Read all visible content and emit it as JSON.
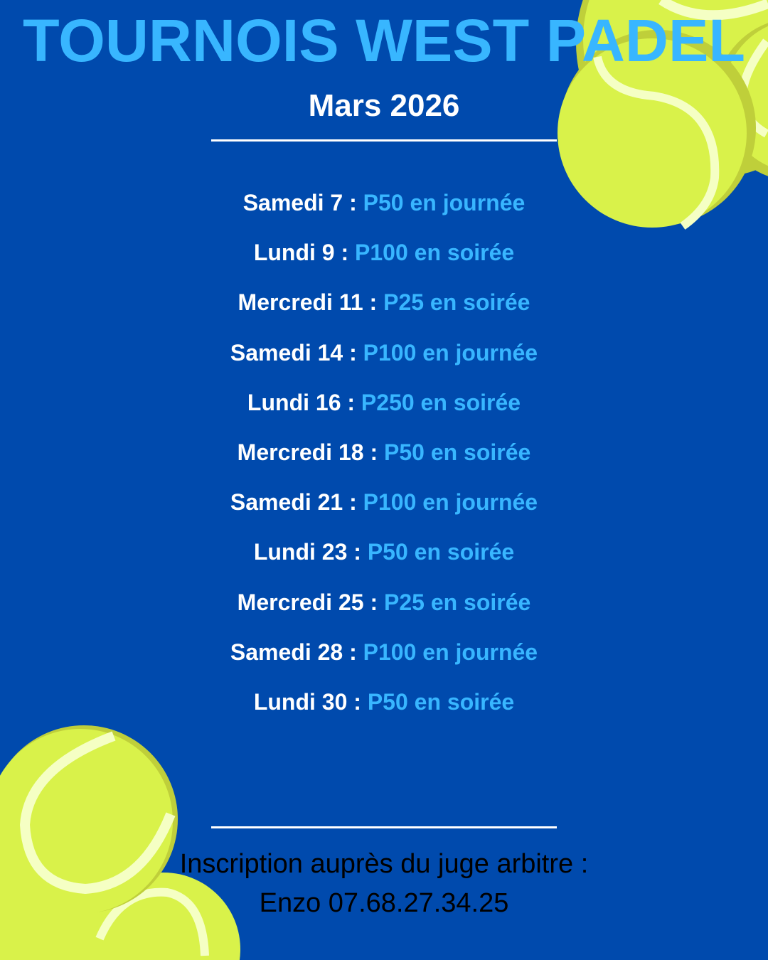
{
  "title": "TOURNOIS WEST PADEL",
  "subtitle": "Mars 2026",
  "schedule": [
    {
      "day": "Samedi 7 : ",
      "event": "P50 en journée"
    },
    {
      "day": "Lundi 9 : ",
      "event": "P100 en soirée"
    },
    {
      "day": "Mercredi 11 : ",
      "event": "P25 en soirée"
    },
    {
      "day": "Samedi 14 : ",
      "event": "P100 en journée"
    },
    {
      "day": "Lundi 16 : ",
      "event": "P250 en soirée"
    },
    {
      "day": "Mercredi 18 : ",
      "event": "P50 en soirée"
    },
    {
      "day": "Samedi 21 : ",
      "event": "P100 en journée"
    },
    {
      "day": "Lundi 23 : ",
      "event": "P50 en soirée"
    },
    {
      "day": "Mercredi 25 : ",
      "event": "P25 en soirée"
    },
    {
      "day": "Samedi 28 : ",
      "event": "P100 en journée"
    },
    {
      "day": "Lundi 30 : ",
      "event": "P50 en soirée"
    }
  ],
  "footer": {
    "line1": "Inscription auprès du juge arbitre :",
    "line2": "Enzo 07.68.27.34.25"
  },
  "colors": {
    "background": "#004aad",
    "accent": "#38b6ff",
    "ball": "#d9f24a",
    "ball_shadow": "#bfcf3a",
    "ball_seam": "#f5ffc4"
  },
  "decorations": [
    "tennis-ball-icon"
  ]
}
